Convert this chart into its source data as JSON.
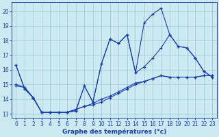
{
  "xlabel": "Graphe des températures (°c)",
  "bg_color": "#cce8f0",
  "line_color": "#1a3ea8",
  "grid_color": "#9ec8d8",
  "xlim": [
    -0.5,
    23.5
  ],
  "ylim": [
    12.7,
    20.6
  ],
  "yticks": [
    13,
    14,
    15,
    16,
    17,
    18,
    19,
    20
  ],
  "xticks": [
    0,
    1,
    2,
    3,
    4,
    5,
    6,
    7,
    8,
    9,
    10,
    11,
    12,
    13,
    14,
    15,
    16,
    17,
    18,
    19,
    20,
    21,
    22,
    23
  ],
  "line1_x": [
    0,
    1,
    2,
    3,
    4,
    5,
    6,
    7,
    8,
    9,
    10,
    11,
    12,
    13,
    14,
    15,
    16,
    17,
    18,
    19,
    20,
    21,
    22,
    23
  ],
  "line1_y": [
    16.3,
    14.7,
    14.1,
    13.1,
    13.1,
    13.1,
    13.1,
    13.2,
    14.9,
    13.8,
    16.4,
    18.1,
    17.8,
    18.4,
    15.8,
    19.2,
    19.8,
    20.2,
    18.4,
    17.6,
    17.5,
    16.8,
    15.9,
    15.5
  ],
  "line2_x": [
    0,
    1,
    2,
    3,
    4,
    5,
    6,
    7,
    8,
    9,
    10,
    11,
    12,
    13,
    14,
    15,
    16,
    17,
    18,
    19,
    20,
    21,
    22,
    23
  ],
  "line2_y": [
    16.3,
    14.7,
    14.1,
    13.1,
    13.1,
    13.1,
    13.1,
    13.2,
    14.9,
    13.8,
    16.4,
    18.1,
    17.8,
    18.4,
    15.8,
    16.2,
    16.8,
    17.5,
    18.4,
    17.6,
    17.5,
    16.8,
    15.9,
    15.5
  ],
  "line3_x": [
    0,
    1,
    2,
    3,
    4,
    5,
    6,
    7,
    8,
    9,
    10,
    11,
    12,
    13,
    14,
    15,
    16,
    17,
    18,
    19,
    20,
    21,
    22,
    23
  ],
  "line3_y": [
    15.0,
    14.8,
    14.1,
    13.1,
    13.1,
    13.1,
    13.1,
    13.3,
    13.5,
    13.6,
    13.8,
    14.1,
    14.4,
    14.7,
    15.0,
    15.2,
    15.4,
    15.6,
    15.5,
    15.5,
    15.5,
    15.5,
    15.6,
    15.6
  ],
  "line4_x": [
    0,
    1,
    2,
    3,
    4,
    5,
    6,
    7,
    8,
    9,
    10,
    11,
    12,
    13,
    14,
    15,
    16,
    17,
    18,
    19,
    20,
    21,
    22,
    23
  ],
  "line4_y": [
    14.9,
    14.8,
    14.1,
    13.1,
    13.1,
    13.1,
    13.1,
    13.3,
    13.5,
    13.7,
    14.0,
    14.2,
    14.5,
    14.8,
    15.1,
    15.2,
    15.4,
    15.6,
    15.5,
    15.5,
    15.5,
    15.5,
    15.6,
    15.6
  ],
  "tick_fontsize": 5.5,
  "xlabel_fontsize": 6.5,
  "xlabel_fontweight": "bold"
}
